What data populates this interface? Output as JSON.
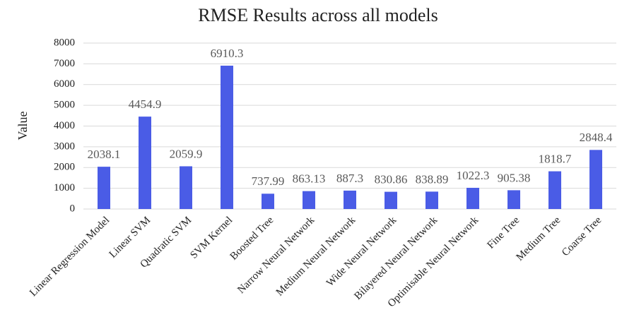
{
  "chart_data": {
    "type": "bar",
    "title": "RMSE Results across all models",
    "y_label": "Value",
    "categories": [
      "Linear Regression Model",
      "Linear SVM",
      "Quadratic SVM",
      "SVM Kernel",
      "Boosted Tree",
      "Narrow Neural Network",
      "Medium Neural Network",
      "Wide Neural Network",
      "Bilayered Neural Network",
      "Optimisable Neural Network",
      "Fine Tree",
      "Medium Tree",
      "Coarse Tree"
    ],
    "values": [
      2038.1,
      4454.9,
      2059.9,
      6910.3,
      737.99,
      863.13,
      887.3,
      830.86,
      838.89,
      1022.3,
      905.38,
      1818.7,
      2848.4
    ],
    "color": "#4a5ce6",
    "ylim": [
      0,
      8000
    ],
    "yticks": [
      0,
      1000,
      2000,
      3000,
      4000,
      5000,
      6000,
      7000,
      8000
    ],
    "grid": true
  }
}
